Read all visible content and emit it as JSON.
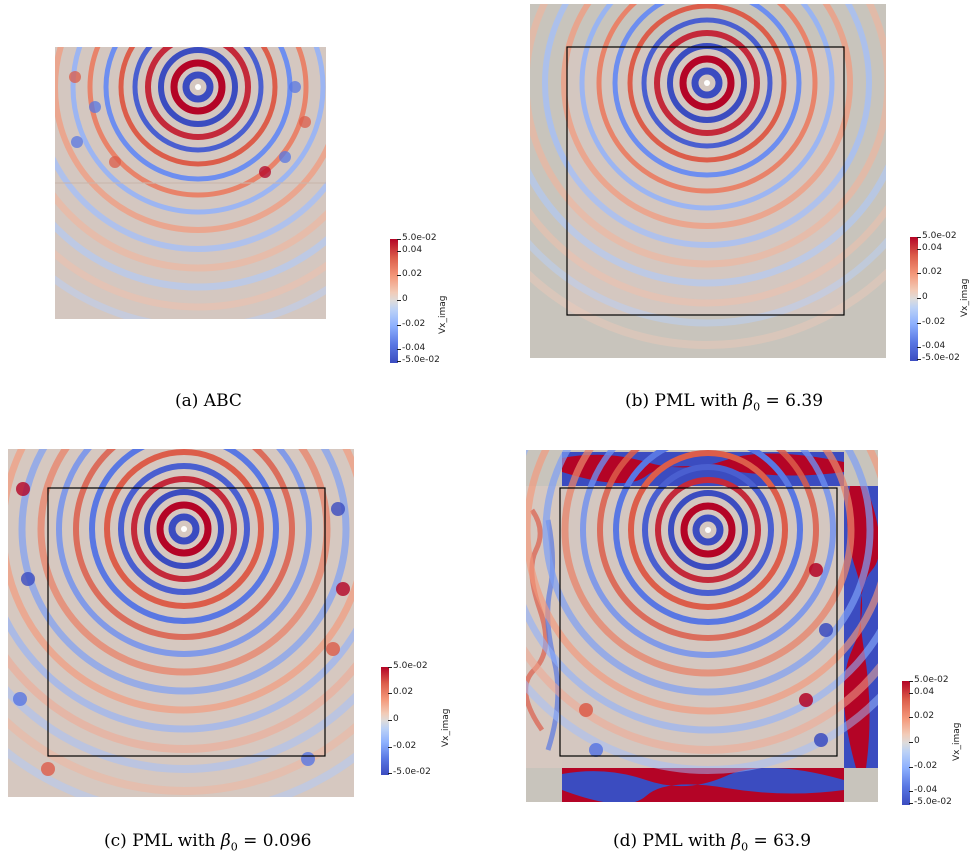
{
  "colorbar": {
    "max_label": "5.0e-02",
    "min_label": "-5.0e-02",
    "ticks": [
      "0.04",
      "0.02",
      "0",
      "-0.02",
      "-0.04"
    ],
    "ticks_c": [
      "0.02",
      "0",
      "-0.02"
    ],
    "variable": "Vx_imag",
    "colors": [
      "#3b4cc0",
      "#dddcdc",
      "#b40426"
    ]
  },
  "panels": [
    {
      "caption_prefix": "(a) ABC",
      "beta": ""
    },
    {
      "caption_prefix": "(b) PML with",
      "beta": "6.39"
    },
    {
      "caption_prefix": "(c) PML with",
      "beta": "0.096"
    },
    {
      "caption_prefix": "(d) PML with",
      "beta": "63.9"
    }
  ],
  "symbols": {
    "beta": "β",
    "sub": "0",
    "eq": "="
  }
}
